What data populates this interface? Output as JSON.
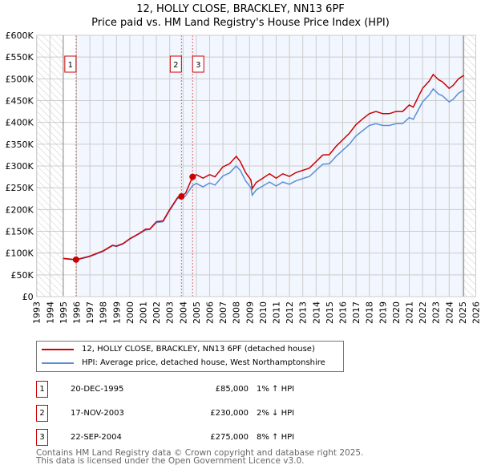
{
  "title": "12, HOLLY CLOSE, BRACKLEY, NN13 6PF",
  "subtitle": "Price paid vs. HM Land Registry's House Price Index (HPI)",
  "chart_data": {
    "type": "line",
    "title": "12, HOLLY CLOSE, BRACKLEY, NN13 6PF",
    "subtitle": "Price paid vs. HM Land Registry's House Price Index (HPI)",
    "xlim": [
      1993,
      2026
    ],
    "ylim": [
      0,
      600000
    ],
    "x_ticks": [
      "1993",
      "1994",
      "1995",
      "1996",
      "1997",
      "1998",
      "1999",
      "2000",
      "2001",
      "2002",
      "2003",
      "2004",
      "2005",
      "2006",
      "2007",
      "2008",
      "2009",
      "2010",
      "2011",
      "2012",
      "2013",
      "2014",
      "2015",
      "2016",
      "2017",
      "2018",
      "2019",
      "2020",
      "2021",
      "2022",
      "2023",
      "2024",
      "2025",
      "2026"
    ],
    "y_ticks": [
      {
        "v": 0,
        "l": "£0"
      },
      {
        "v": 50000,
        "l": "£50K"
      },
      {
        "v": 100000,
        "l": "£100K"
      },
      {
        "v": 150000,
        "l": "£150K"
      },
      {
        "v": 200000,
        "l": "£200K"
      },
      {
        "v": 250000,
        "l": "£250K"
      },
      {
        "v": 300000,
        "l": "£300K"
      },
      {
        "v": 350000,
        "l": "£350K"
      },
      {
        "v": 400000,
        "l": "£400K"
      },
      {
        "v": 450000,
        "l": "£450K"
      },
      {
        "v": 500000,
        "l": "£500K"
      },
      {
        "v": 550000,
        "l": "£550K"
      },
      {
        "v": 600000,
        "l": "£600K"
      }
    ],
    "grid": true,
    "x": [
      1995,
      1995.96,
      1996.5,
      1997,
      1998,
      1998.7,
      1999,
      1999.5,
      2000,
      2000.7,
      2001.2,
      2001.5,
      2002,
      2002.5,
      2003,
      2003.6,
      2003.88,
      2004.2,
      2004.72,
      2005,
      2005.5,
      2006,
      2006.4,
      2007,
      2007.5,
      2008,
      2008.3,
      2008.7,
      2009.1,
      2009.2,
      2009.5,
      2010,
      2010.5,
      2011,
      2011.5,
      2012,
      2012.5,
      2013,
      2013.5,
      2014,
      2014.5,
      2015,
      2015.5,
      2016,
      2016.5,
      2017,
      2017.5,
      2018,
      2018.5,
      2019,
      2019.5,
      2020,
      2020.5,
      2021,
      2021.3,
      2021.7,
      2022,
      2022.5,
      2022.8,
      2023.2,
      2023.5,
      2024,
      2024.3,
      2024.7,
      2025.1
    ],
    "series": [
      {
        "name": "12, HOLLY CLOSE, BRACKLEY, NN13 6PF (detached house)",
        "color": "#cc0000",
        "values": [
          88,
          85,
          89,
          93,
          105,
          118,
          116,
          122,
          133,
          145,
          155,
          155,
          172,
          174,
          200,
          228,
          230,
          238,
          275,
          280,
          272,
          280,
          275,
          298,
          305,
          322,
          310,
          285,
          268,
          248,
          262,
          272,
          282,
          272,
          282,
          276,
          285,
          290,
          295,
          310,
          325,
          326,
          345,
          360,
          375,
          395,
          408,
          420,
          425,
          420,
          420,
          425,
          425,
          440,
          435,
          460,
          478,
          495,
          510,
          498,
          493,
          478,
          485,
          500,
          508
        ]
      },
      {
        "name": "HPI: Average price, detached house, West Northamptonshire",
        "color": "#5b8fd6",
        "values": [
          87,
          84,
          88,
          92,
          104,
          117,
          115,
          121,
          132,
          144,
          153,
          154,
          170,
          172,
          198,
          226,
          225,
          232,
          255,
          260,
          252,
          261,
          256,
          277,
          284,
          300,
          290,
          266,
          250,
          233,
          245,
          254,
          263,
          254,
          263,
          258,
          266,
          271,
          276,
          290,
          304,
          305,
          322,
          336,
          350,
          369,
          381,
          393,
          397,
          393,
          393,
          397,
          397,
          411,
          407,
          430,
          447,
          463,
          477,
          465,
          461,
          447,
          453,
          467,
          474
        ]
      }
    ],
    "value_unit": "thousands GBP",
    "sales": [
      {
        "n": "1",
        "x": 1995.96,
        "value": 85
      },
      {
        "n": "2",
        "x": 2003.88,
        "value": 230
      },
      {
        "n": "3",
        "x": 2004.72,
        "value": 275
      }
    ],
    "legend_placement": "bottom"
  },
  "legend": [
    {
      "label": "12, HOLLY CLOSE, BRACKLEY, NN13 6PF (detached house)",
      "color": "#cc0000"
    },
    {
      "label": "HPI: Average price, detached house, West Northamptonshire",
      "color": "#5b8fd6"
    }
  ],
  "transactions": [
    {
      "n": "1",
      "date": "20-DEC-1995",
      "price": "£85,000",
      "hpi": "1% ↑ HPI"
    },
    {
      "n": "2",
      "date": "17-NOV-2003",
      "price": "£230,000",
      "hpi": "2% ↓ HPI"
    },
    {
      "n": "3",
      "date": "22-SEP-2004",
      "price": "£275,000",
      "hpi": "8% ↑ HPI"
    }
  ],
  "footer": [
    "Contains HM Land Registry data © Crown copyright and database right 2025.",
    "This data is licensed under the Open Government Licence v3.0."
  ]
}
